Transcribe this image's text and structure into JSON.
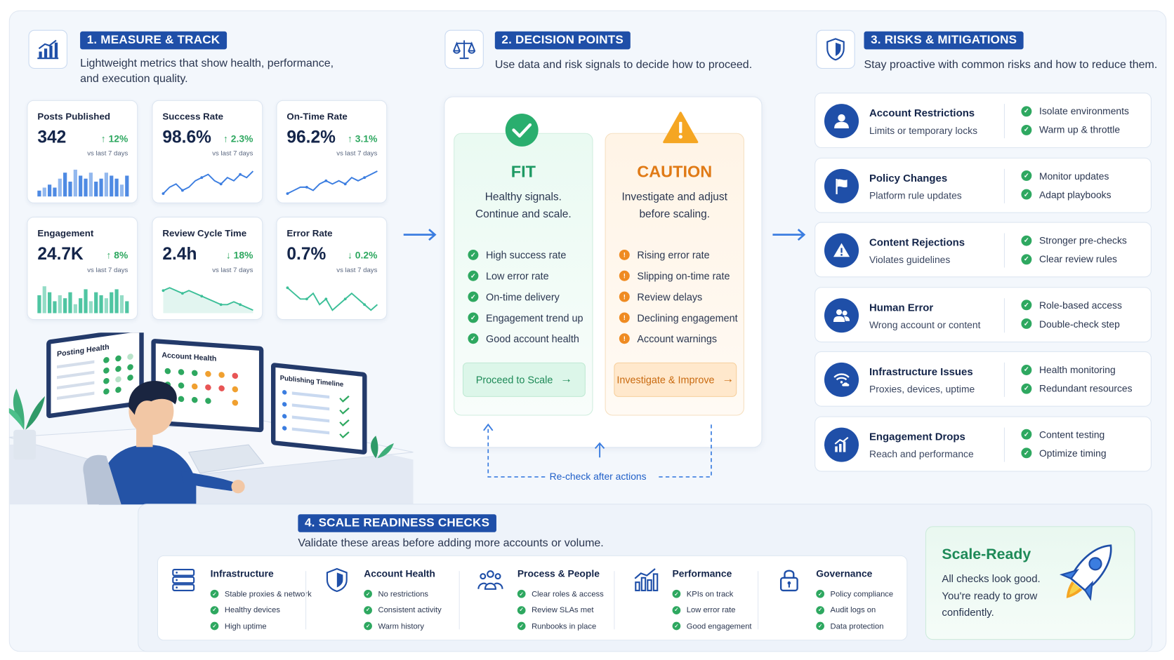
{
  "measure": {
    "number_label": "1. MEASURE & TRACK",
    "subtitle_line1": "Lightweight metrics that show health, performance,",
    "subtitle_line2": "and execution quality.",
    "metrics": [
      {
        "label": "Posts Published",
        "value": "342",
        "delta": "↑ 12%",
        "vs": "vs last 7 days",
        "chart": "bars",
        "series": [
          2,
          3,
          4,
          3,
          6,
          8,
          5,
          9,
          7,
          6,
          8,
          5,
          6,
          8,
          7,
          6,
          4,
          7
        ]
      },
      {
        "label": "Success Rate",
        "value": "98.6%",
        "delta": "↑ 2.3%",
        "vs": "vs last 7 days",
        "chart": "line",
        "series": [
          2,
          4,
          5,
          3,
          4,
          6,
          7,
          8,
          6,
          5,
          7,
          6,
          8,
          7,
          9
        ]
      },
      {
        "label": "On-Time Rate",
        "value": "96.2%",
        "delta": "↑ 3.1%",
        "vs": "vs last 7 days",
        "chart": "line",
        "series": [
          2,
          3,
          4,
          4,
          3,
          5,
          6,
          5,
          6,
          5,
          7,
          6,
          7,
          8,
          9
        ]
      },
      {
        "label": "Engagement",
        "value": "24.7K",
        "delta": "↑ 8%",
        "vs": "vs last 7 days",
        "chart": "bars",
        "series": [
          6,
          9,
          7,
          4,
          6,
          5,
          7,
          3,
          5,
          8,
          4,
          7,
          6,
          5,
          7,
          8,
          6,
          4
        ]
      },
      {
        "label": "Review Cycle Time",
        "value": "2.4h",
        "delta": "↓ 18%",
        "vs": "vs last 7 days",
        "chart": "area",
        "series": [
          8,
          9,
          8,
          7,
          8,
          7,
          6,
          5,
          4,
          3,
          3,
          4,
          3,
          2,
          1
        ]
      },
      {
        "label": "Error Rate",
        "value": "0.7%",
        "delta": "↓ 0.2%",
        "vs": "vs last 7 days",
        "chart": "line",
        "series": [
          6,
          5,
          4,
          4,
          5,
          3,
          4,
          2,
          3,
          4,
          5,
          4,
          3,
          2,
          3
        ]
      }
    ]
  },
  "illustration": {
    "screen1_title": "Posting Health",
    "screen2_title": "Account Health",
    "screen3_title": "Publishing Timeline"
  },
  "decision": {
    "number_label": "2. DECISION POINTS",
    "subtitle": "Use data and risk signals to decide how to proceed.",
    "fit": {
      "title": "FIT",
      "line1": "Healthy signals.",
      "line2": "Continue and scale.",
      "items": [
        "High success rate",
        "Low error rate",
        "On-time delivery",
        "Engagement trend up",
        "Good account health"
      ],
      "button": "Proceed to Scale",
      "button_arrow": "→"
    },
    "caution": {
      "title": "CAUTION",
      "line1": "Investigate and adjust",
      "line2": "before scaling.",
      "items": [
        "Rising error rate",
        "Slipping on-time rate",
        "Review delays",
        "Declining engagement",
        "Account warnings"
      ],
      "button": "Investigate & Improve",
      "button_arrow": "→"
    },
    "recheck": "Re-check after actions"
  },
  "risks": {
    "number_label": "3. RISKS & MITIGATIONS",
    "subtitle": "Stay proactive with common risks and how to reduce them.",
    "items": [
      {
        "title": "Account Restrictions",
        "desc": "Limits or temporary locks",
        "m1": "Isolate environments",
        "m2": "Warm up & throttle",
        "icon": "user-icon"
      },
      {
        "title": "Policy Changes",
        "desc": "Platform rule updates",
        "m1": "Monitor updates",
        "m2": "Adapt playbooks",
        "icon": "flag-icon"
      },
      {
        "title": "Content Rejections",
        "desc": "Violates guidelines",
        "m1": "Stronger pre-checks",
        "m2": "Clear review rules",
        "icon": "warning-icon"
      },
      {
        "title": "Human Error",
        "desc": "Wrong account or content",
        "m1": "Role-based access",
        "m2": "Double-check step",
        "icon": "team-icon"
      },
      {
        "title": "Infrastructure Issues",
        "desc": "Proxies, devices, uptime",
        "m1": "Health monitoring",
        "m2": "Redundant resources",
        "icon": "wifi-cloud-icon"
      },
      {
        "title": "Engagement Drops",
        "desc": "Reach and performance",
        "m1": "Content testing",
        "m2": "Optimize timing",
        "icon": "chart-icon"
      }
    ]
  },
  "scale": {
    "number_label": "4. SCALE READINESS CHECKS",
    "subtitle": "Validate these areas before adding more accounts or volume.",
    "checks": [
      {
        "title": "Infrastructure",
        "items": [
          "Stable proxies & network",
          "Healthy devices",
          "High uptime"
        ],
        "icon": "server-icon"
      },
      {
        "title": "Account Health",
        "items": [
          "No restrictions",
          "Consistent activity",
          "Warm history"
        ],
        "icon": "shield-icon"
      },
      {
        "title": "Process & People",
        "items": [
          "Clear roles & access",
          "Review SLAs met",
          "Runbooks in place"
        ],
        "icon": "people-icon"
      },
      {
        "title": "Performance",
        "items": [
          "KPIs on track",
          "Low error rate",
          "Good engagement"
        ],
        "icon": "bar-chart-icon"
      },
      {
        "title": "Governance",
        "items": [
          "Policy compliance",
          "Audit logs on",
          "Data protection"
        ],
        "icon": "lock-icon"
      }
    ],
    "ready": {
      "title": "Scale-Ready",
      "line1": "All checks look good.",
      "line2": "You're ready to grow",
      "line3": "confidently."
    }
  },
  "colors": {
    "primary": "#1f4fa8",
    "green": "#2ea860",
    "orange": "#ef8b22",
    "chart_blue": "#3b7de0",
    "chart_green": "#3cbf98"
  }
}
